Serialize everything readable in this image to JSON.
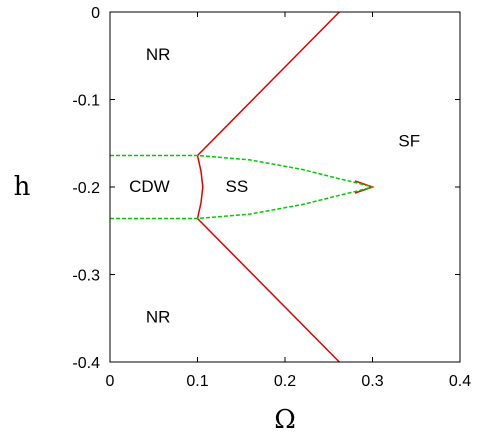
{
  "chart_data": {
    "type": "line",
    "title": "",
    "xlabel": "Ω",
    "ylabel": "h",
    "xlim": [
      0,
      0.4
    ],
    "ylim": [
      -0.4,
      0
    ],
    "xticks": [
      0,
      0.1,
      0.2,
      0.3,
      0.4
    ],
    "xtick_labels": [
      "0",
      "0.1",
      "0.2",
      "0.3",
      "0.4"
    ],
    "yticks": [
      0,
      -0.1,
      -0.2,
      -0.3,
      -0.4
    ],
    "ytick_labels": [
      "0",
      "-0.1",
      "-0.2",
      "-0.3",
      "-0.4"
    ],
    "grid": false,
    "legend": "none",
    "colors": {
      "solid": "#e00000",
      "dashed": "#00cc00"
    },
    "series": [
      {
        "style": "solid",
        "color": "#e00000",
        "x": [
          0.1,
          0.262
        ],
        "y": [
          -0.164,
          0
        ]
      },
      {
        "style": "solid",
        "color": "#e00000",
        "x": [
          0.1,
          0.262
        ],
        "y": [
          -0.236,
          -0.4
        ]
      },
      {
        "style": "solid",
        "color": "#e00000",
        "x": [
          0.1,
          0.104,
          0.106,
          0.104,
          0.1
        ],
        "y": [
          -0.164,
          -0.182,
          -0.2,
          -0.218,
          -0.236
        ]
      },
      {
        "style": "solid",
        "color": "#e00000",
        "x": [
          0.28,
          0.3,
          0.28
        ],
        "y": [
          -0.193,
          -0.2,
          -0.207
        ]
      },
      {
        "style": "dashed",
        "color": "#00cc00",
        "x": [
          0,
          0.1,
          0.16,
          0.22,
          0.26,
          0.285,
          0.3
        ],
        "y": [
          -0.164,
          -0.164,
          -0.169,
          -0.18,
          -0.19,
          -0.196,
          -0.2
        ]
      },
      {
        "style": "dashed",
        "color": "#00cc00",
        "x": [
          0,
          0.1,
          0.16,
          0.22,
          0.26,
          0.285,
          0.3
        ],
        "y": [
          -0.236,
          -0.236,
          -0.231,
          -0.22,
          -0.21,
          -0.204,
          -0.2
        ]
      }
    ],
    "annotations": [
      {
        "text": "NR",
        "x": 0.055,
        "y": -0.048
      },
      {
        "text": "NR",
        "x": 0.055,
        "y": -0.348
      },
      {
        "text": "CDW",
        "x": 0.045,
        "y": -0.199
      },
      {
        "text": "SS",
        "x": 0.145,
        "y": -0.199
      },
      {
        "text": "SF",
        "x": 0.342,
        "y": -0.147
      }
    ]
  }
}
